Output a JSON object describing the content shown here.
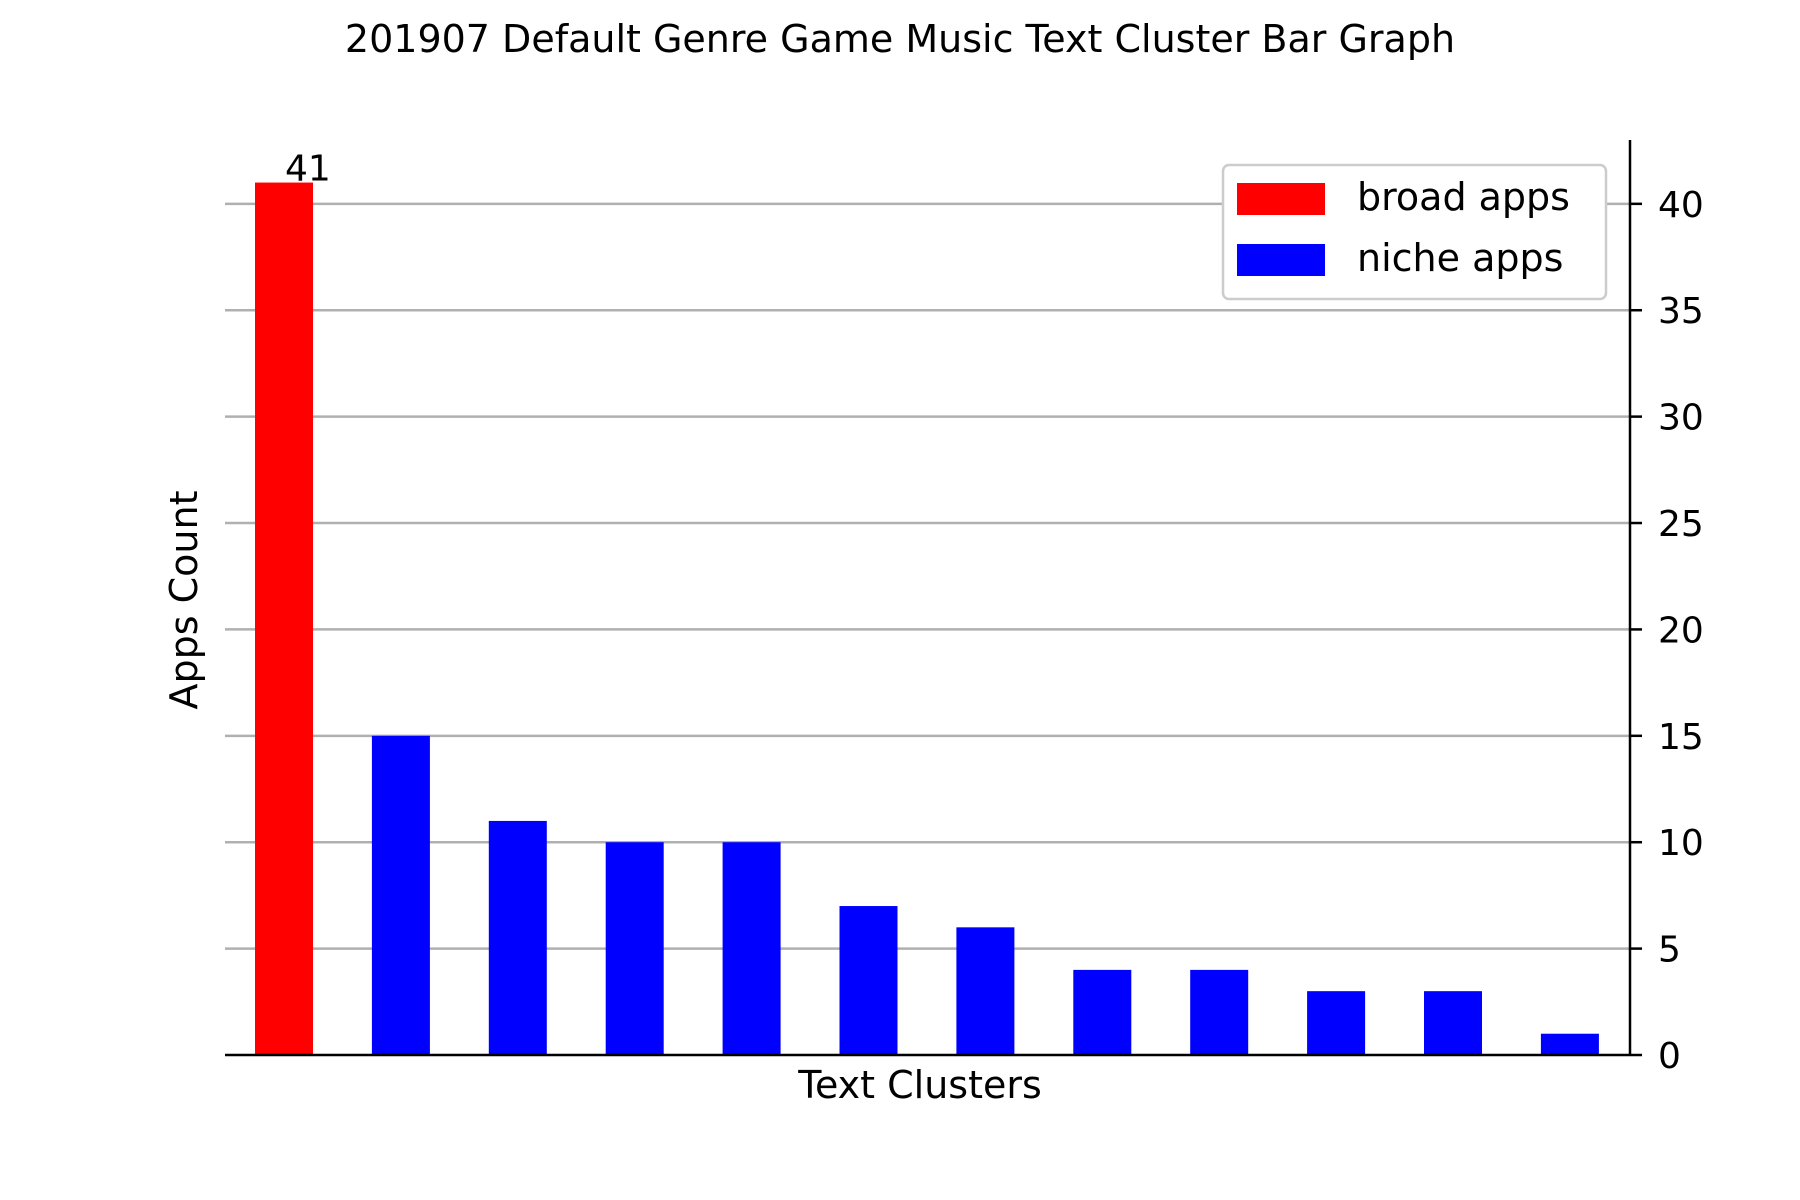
{
  "chart_data": {
    "type": "bar",
    "title": "201907 Default Genre Game Music Text Cluster Bar Graph",
    "xlabel": "Text Clusters",
    "ylabel": "Apps Count",
    "ylim": [
      0,
      43
    ],
    "yticks": [
      0,
      5,
      10,
      15,
      20,
      25,
      30,
      35,
      40
    ],
    "y_axis_side": "right",
    "grid": "horizontal",
    "legend_position": "top-right",
    "values": [
      41,
      15,
      11,
      10,
      10,
      7,
      6,
      4,
      4,
      3,
      3,
      1
    ],
    "bar_series": [
      "broad",
      "niche",
      "niche",
      "niche",
      "niche",
      "niche",
      "niche",
      "niche",
      "niche",
      "niche",
      "niche",
      "niche"
    ],
    "data_labels": [
      {
        "index": 0,
        "text": "41"
      }
    ],
    "series": [
      {
        "key": "broad",
        "name": "broad apps",
        "color": "#ff0000"
      },
      {
        "key": "niche",
        "name": "niche apps",
        "color": "#0000ff"
      }
    ],
    "colors": {
      "grid": "#b0b0b0",
      "axis": "#000000"
    }
  }
}
